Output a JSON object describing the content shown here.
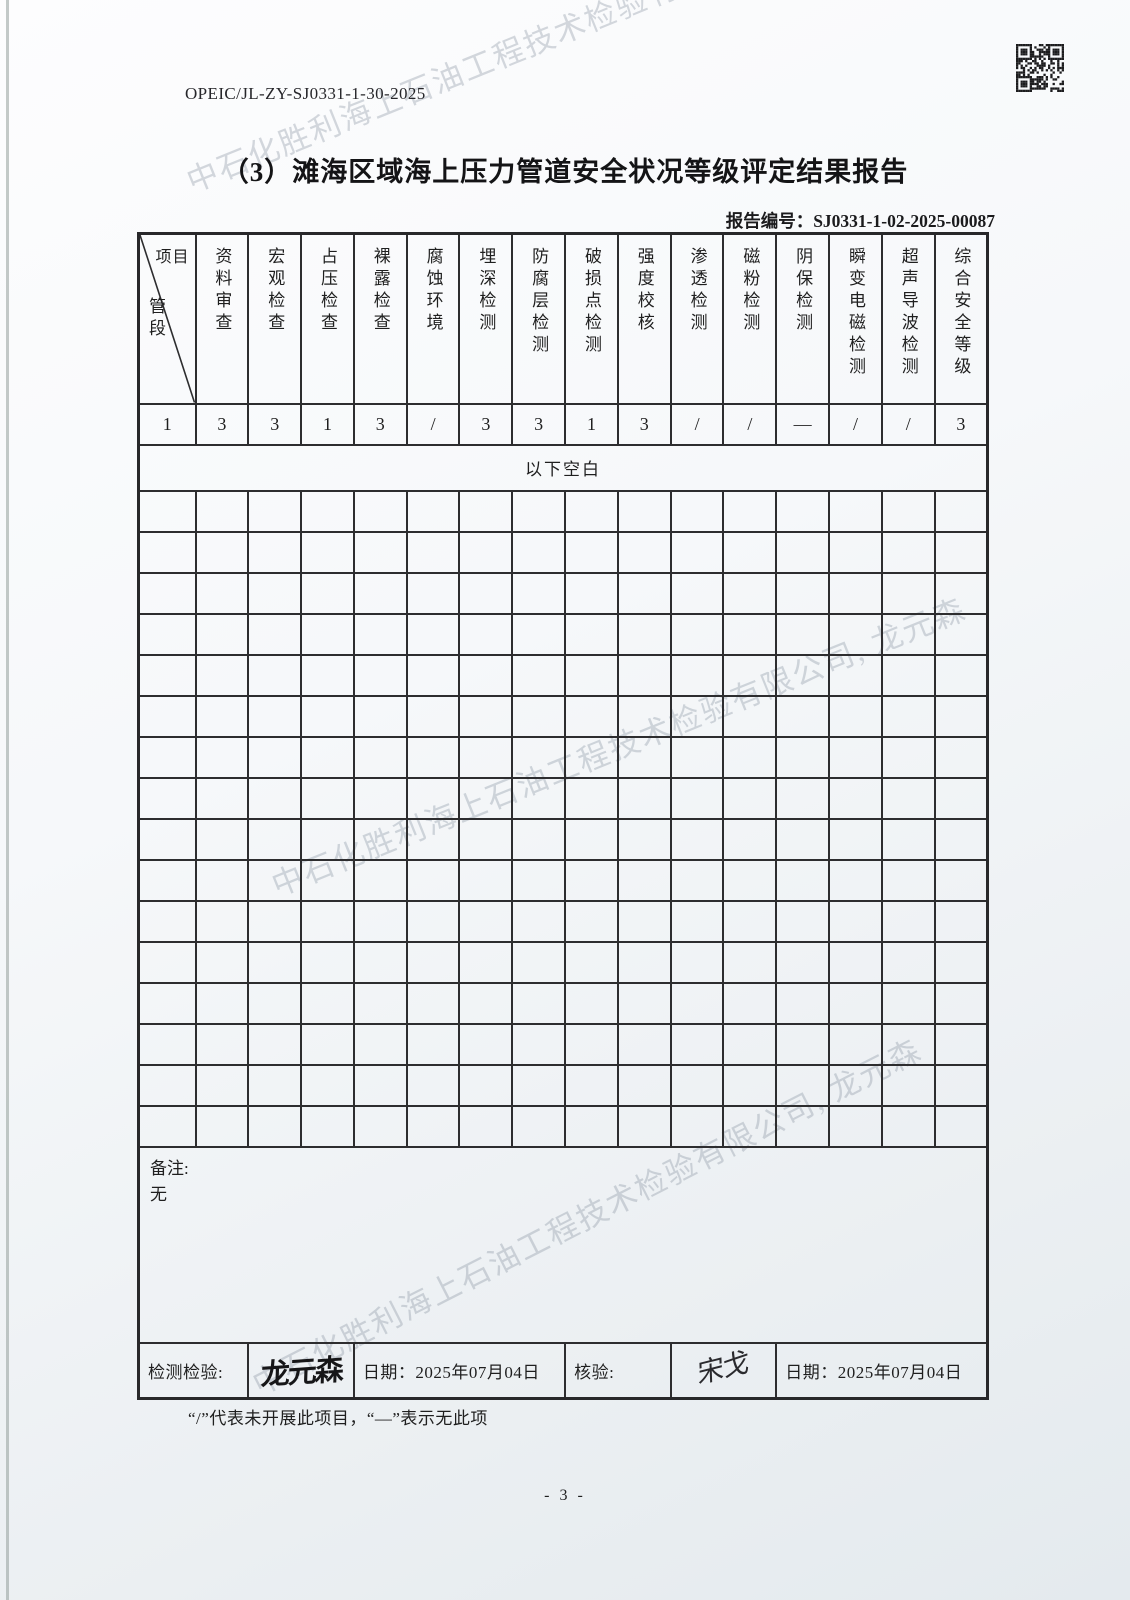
{
  "page": {
    "doc_code": "OPEIC/JL-ZY-SJ0331-1-30-2025",
    "title": "（3）滩海区域海上压力管道安全状况等级评定结果报告",
    "report_no_label": "报告编号：",
    "report_no": "SJ0331-1-02-2025-00087",
    "footnote": "“/”代表未开展此项目，“—”表示无此项",
    "page_number": "- 3 -",
    "watermark_text": "中石化胜利海上石油工程技术检验有限公司, 龙元森",
    "qr_color": "#1c1c1e",
    "border_color": "#2d2d2f"
  },
  "table": {
    "corner_top_right": "项目",
    "corner_bottom_left": "管段",
    "columns": [
      "资料审查",
      "宏观检查",
      "占压检查",
      "裸露检查",
      "腐蚀环境",
      "埋深检测",
      "防腐层检测",
      "破损点检测",
      "强度校核",
      "渗透检测",
      "磁粉检测",
      "阴保检测",
      "瞬变电磁检测",
      "超声导波检测",
      "综合安全等级"
    ],
    "data_row": [
      "1",
      "3",
      "3",
      "1",
      "3",
      "/",
      "3",
      "3",
      "1",
      "3",
      "/",
      "/",
      "—",
      "/",
      "/",
      "3"
    ],
    "blank_label": "以下空白",
    "empty_row_count": 16,
    "remarks_label": "备注:",
    "remarks_value": "无"
  },
  "signature_row": {
    "inspector_label": "检测检验:",
    "inspector_signature": "龙元森",
    "date1_label": "日期：",
    "date1_value": "2025年07月04日",
    "verifier_label": "核验:",
    "verifier_signature": "宋戈",
    "date2_label": "日期：",
    "date2_value": "2025年07月04日"
  }
}
